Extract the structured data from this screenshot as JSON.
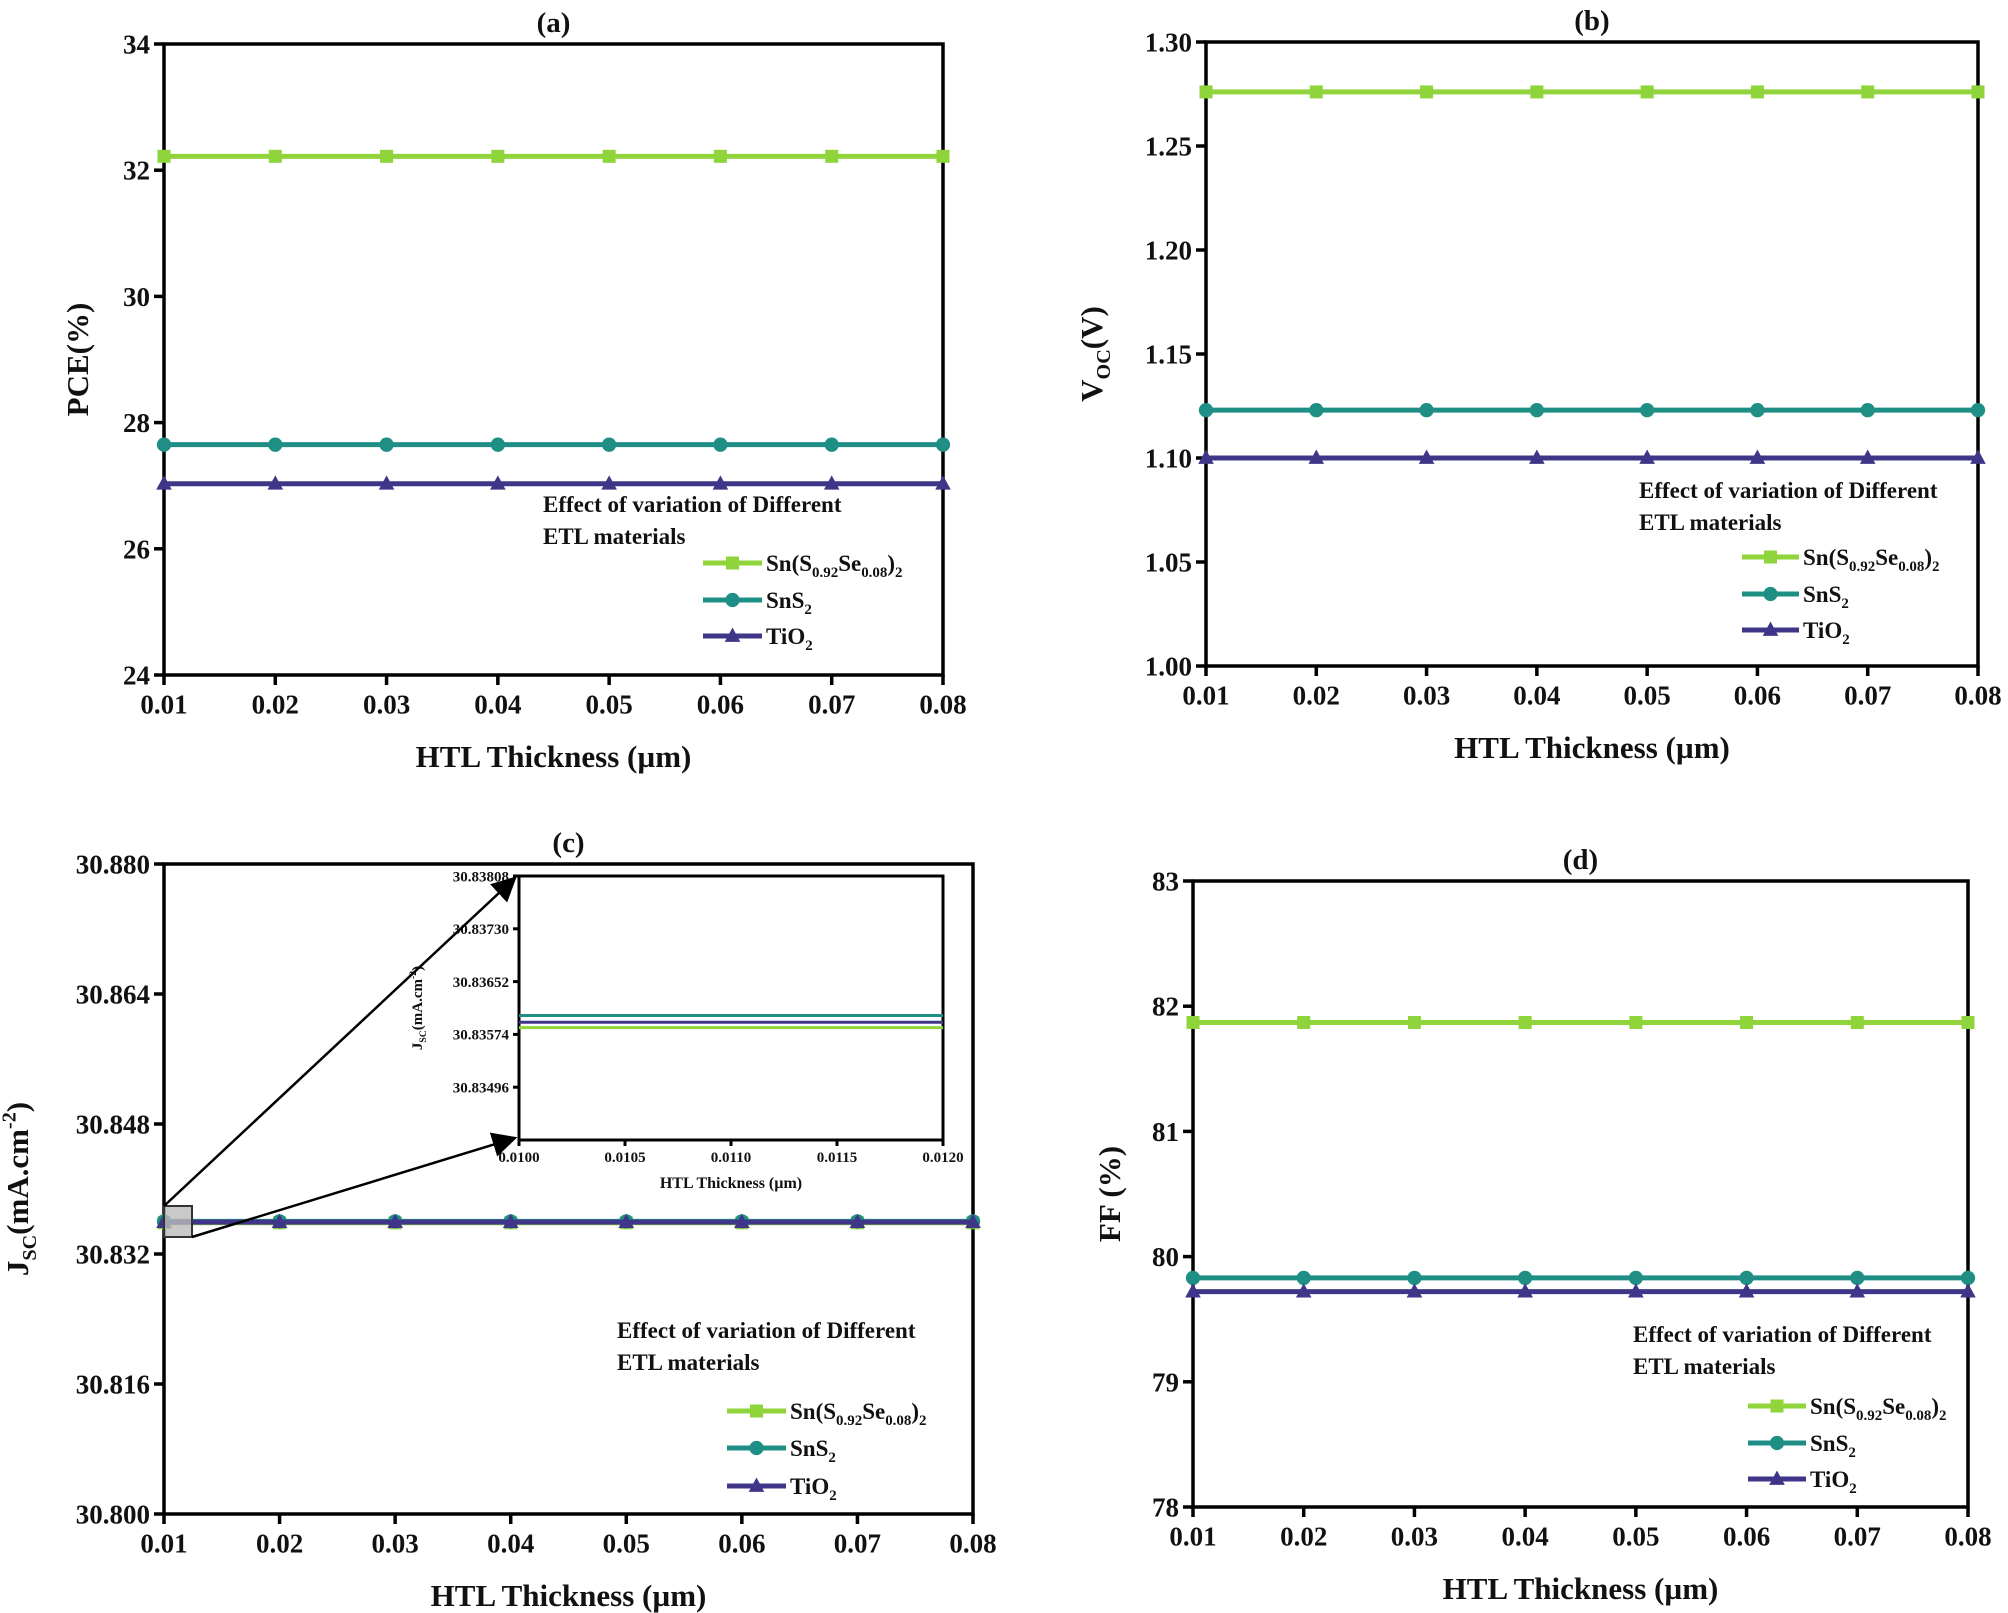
{
  "series_colors": {
    "Sn(S0.92Se0.08)2": "#8ed43a",
    "SnS2": "#1f8f86",
    "TiO2": "#3f3689"
  },
  "series_markers": {
    "Sn(S0.92Se0.08)2": "square",
    "SnS2": "circle",
    "TiO2": "triangle"
  },
  "legend_title": [
    "Effect of variation of Different",
    "ETL materials"
  ],
  "legend_labels": [
    [
      {
        "t": "Sn(S"
      },
      {
        "sub": "0.92"
      },
      {
        "t": "Se"
      },
      {
        "sub": "0.08"
      },
      {
        "t": ")"
      },
      {
        "sub": "2"
      }
    ],
    [
      {
        "t": "SnS"
      },
      {
        "sub": "2"
      }
    ],
    [
      {
        "t": "TiO"
      },
      {
        "sub": "2"
      }
    ]
  ],
  "chart_data": [
    {
      "type": "line",
      "title": "(a)",
      "xlabel": "HTL Thickness (µm)",
      "ylabel": [
        {
          "t": "PCE(%)"
        }
      ],
      "x": [
        0.01,
        0.02,
        0.03,
        0.04,
        0.05,
        0.06,
        0.07,
        0.08
      ],
      "xticks": [
        "0.01",
        "0.02",
        "0.03",
        "0.04",
        "0.05",
        "0.06",
        "0.07",
        "0.08"
      ],
      "xlim": [
        0.01,
        0.08
      ],
      "ylim": [
        24,
        34
      ],
      "yticks": [
        "24",
        "26",
        "28",
        "30",
        "32",
        "34"
      ],
      "legend": "bottom-right",
      "series": [
        {
          "name": "Sn(S0.92Se0.08)2",
          "values": [
            32.22,
            32.22,
            32.22,
            32.22,
            32.22,
            32.22,
            32.22,
            32.22
          ]
        },
        {
          "name": "SnS2",
          "values": [
            27.65,
            27.65,
            27.65,
            27.65,
            27.65,
            27.65,
            27.65,
            27.65
          ]
        },
        {
          "name": "TiO2",
          "values": [
            27.03,
            27.03,
            27.03,
            27.03,
            27.03,
            27.03,
            27.03,
            27.03
          ]
        }
      ]
    },
    {
      "type": "line",
      "title": "(b)",
      "xlabel": "HTL Thickness (µm)",
      "ylabel": [
        {
          "t": "V"
        },
        {
          "sub": "OC"
        },
        {
          "t": "(V)"
        }
      ],
      "x": [
        0.01,
        0.02,
        0.03,
        0.04,
        0.05,
        0.06,
        0.07,
        0.08
      ],
      "xticks": [
        "0.01",
        "0.02",
        "0.03",
        "0.04",
        "0.05",
        "0.06",
        "0.07",
        "0.08"
      ],
      "xlim": [
        0.01,
        0.08
      ],
      "ylim": [
        1.0,
        1.3
      ],
      "yticks": [
        "1.00",
        "1.05",
        "1.10",
        "1.15",
        "1.20",
        "1.25",
        "1.30"
      ],
      "legend": "bottom-right",
      "series": [
        {
          "name": "Sn(S0.92Se0.08)2",
          "values": [
            1.276,
            1.276,
            1.276,
            1.276,
            1.276,
            1.276,
            1.276,
            1.276
          ]
        },
        {
          "name": "SnS2",
          "values": [
            1.123,
            1.123,
            1.123,
            1.123,
            1.123,
            1.123,
            1.123,
            1.123
          ]
        },
        {
          "name": "TiO2",
          "values": [
            1.1,
            1.1,
            1.1,
            1.1,
            1.1,
            1.1,
            1.1,
            1.1
          ]
        }
      ]
    },
    {
      "type": "line",
      "title": "(c)",
      "xlabel": "HTL Thickness (µm)",
      "ylabel": [
        {
          "t": "J"
        },
        {
          "sub": "SC"
        },
        {
          "t": "(mA.cm"
        },
        {
          "sup": "-2"
        },
        {
          "t": ")"
        }
      ],
      "x": [
        0.01,
        0.02,
        0.03,
        0.04,
        0.05,
        0.06,
        0.07,
        0.08
      ],
      "xticks": [
        "0.01",
        "0.02",
        "0.03",
        "0.04",
        "0.05",
        "0.06",
        "0.07",
        "0.08"
      ],
      "xlim": [
        0.01,
        0.08
      ],
      "ylim": [
        30.8,
        30.88
      ],
      "yticks": [
        "30.800",
        "30.816",
        "30.832",
        "30.848",
        "30.864",
        "30.880"
      ],
      "legend": "bottom-right",
      "series": [
        {
          "name": "Sn(S0.92Se0.08)2",
          "values": [
            30.83584,
            30.83584,
            30.83584,
            30.83584,
            30.83584,
            30.83584,
            30.83584,
            30.83584
          ]
        },
        {
          "name": "SnS2",
          "values": [
            30.83602,
            30.83602,
            30.83602,
            30.83602,
            30.83602,
            30.83602,
            30.83602,
            30.83602
          ]
        },
        {
          "name": "TiO2",
          "values": [
            30.83592,
            30.83592,
            30.83592,
            30.83592,
            30.83592,
            30.83592,
            30.83592,
            30.83592
          ]
        }
      ],
      "inset": {
        "xlabel": "HTL Thickness (µm)",
        "ylabel": [
          {
            "t": "J"
          },
          {
            "sub": "SC"
          },
          {
            "t": "(mA.cm"
          },
          {
            "sup": "-2"
          },
          {
            "t": ")"
          }
        ],
        "x": [
          0.01,
          0.012
        ],
        "xlim": [
          0.01,
          0.012
        ],
        "xticks": [
          "0.0100",
          "0.0105",
          "0.0110",
          "0.0115",
          "0.0120"
        ],
        "ylim": [
          30.83418,
          30.83808
        ],
        "yticks": [
          "30.83496",
          "30.83574",
          "30.83652",
          "30.83730",
          "30.83808"
        ],
        "series": [
          {
            "name": "Sn(S0.92Se0.08)2",
            "values": [
              30.83584,
              30.83584
            ]
          },
          {
            "name": "SnS2",
            "values": [
              30.83602,
              30.83602
            ]
          },
          {
            "name": "TiO2",
            "values": [
              30.83592,
              30.83592
            ]
          }
        ]
      }
    },
    {
      "type": "line",
      "title": "(d)",
      "xlabel": "HTL Thickness (µm)",
      "ylabel": [
        {
          "t": "FF (%)"
        }
      ],
      "x": [
        0.01,
        0.02,
        0.03,
        0.04,
        0.05,
        0.06,
        0.07,
        0.08
      ],
      "xticks": [
        "0.01",
        "0.02",
        "0.03",
        "0.04",
        "0.05",
        "0.06",
        "0.07",
        "0.08"
      ],
      "xlim": [
        0.01,
        0.08
      ],
      "ylim": [
        78,
        83
      ],
      "yticks": [
        "78",
        "79",
        "80",
        "81",
        "82",
        "83"
      ],
      "legend": "bottom-right",
      "series": [
        {
          "name": "Sn(S0.92Se0.08)2",
          "values": [
            81.87,
            81.87,
            81.87,
            81.87,
            81.87,
            81.87,
            81.87,
            81.87
          ]
        },
        {
          "name": "SnS2",
          "values": [
            79.83,
            79.83,
            79.83,
            79.83,
            79.83,
            79.83,
            79.83,
            79.83
          ]
        },
        {
          "name": "TiO2",
          "values": [
            79.72,
            79.72,
            79.72,
            79.72,
            79.72,
            79.72,
            79.72,
            79.72
          ]
        }
      ]
    }
  ]
}
